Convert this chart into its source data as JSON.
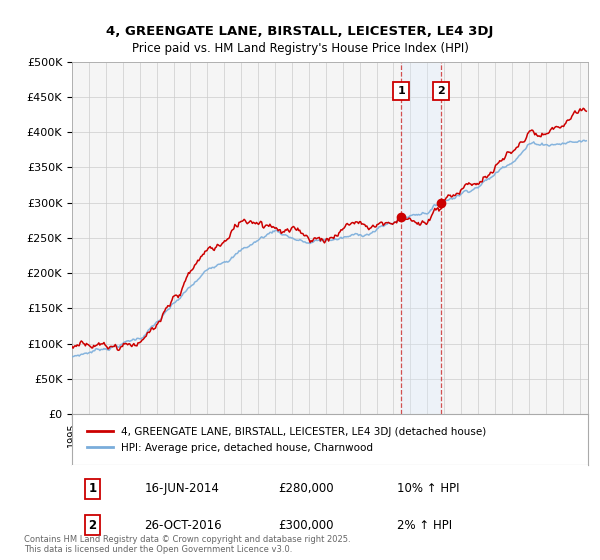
{
  "title": "4, GREENGATE LANE, BIRSTALL, LEICESTER, LE4 3DJ",
  "subtitle": "Price paid vs. HM Land Registry's House Price Index (HPI)",
  "ylim": [
    0,
    500000
  ],
  "yticks": [
    0,
    50000,
    100000,
    150000,
    200000,
    250000,
    300000,
    350000,
    400000,
    450000,
    500000
  ],
  "ytick_labels": [
    "£0",
    "£50K",
    "£100K",
    "£150K",
    "£200K",
    "£250K",
    "£300K",
    "£350K",
    "£400K",
    "£450K",
    "£500K"
  ],
  "xlim_start": 1995.0,
  "xlim_end": 2025.5,
  "sale1_date": 2014.46,
  "sale1_price": 280000,
  "sale1_label": "1",
  "sale1_text": "16-JUN-2014",
  "sale1_amount": "£280,000",
  "sale1_hpi": "10% ↑ HPI",
  "sale2_date": 2016.82,
  "sale2_price": 300000,
  "sale2_label": "2",
  "sale2_text": "26-OCT-2016",
  "sale2_amount": "£300,000",
  "sale2_hpi": "2% ↑ HPI",
  "hpi_color": "#7aaddb",
  "price_color": "#cc0000",
  "shade_color": "#ddeeff",
  "grid_color": "#cccccc",
  "background_color": "#f5f5f5",
  "legend_label_price": "4, GREENGATE LANE, BIRSTALL, LEICESTER, LE4 3DJ (detached house)",
  "legend_label_hpi": "HPI: Average price, detached house, Charnwood",
  "footer": "Contains HM Land Registry data © Crown copyright and database right 2025.\nThis data is licensed under the Open Government Licence v3.0."
}
